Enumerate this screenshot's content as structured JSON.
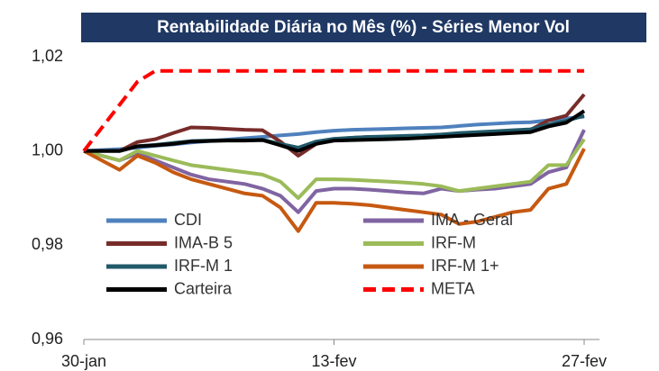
{
  "chart_data": {
    "type": "line",
    "title": "Rentabilidade Diária no Mês (%) - Séries Menor Vol",
    "categories": [
      "30-jan",
      null,
      null,
      null,
      null,
      null,
      null,
      null,
      null,
      null,
      null,
      null,
      null,
      null,
      "13-fev",
      null,
      null,
      null,
      null,
      null,
      null,
      null,
      null,
      null,
      null,
      null,
      null,
      null,
      "27-fev"
    ],
    "ylim": [
      0.96,
      1.02
    ],
    "yticks": [
      {
        "value": 0.96,
        "label": "0,96"
      },
      {
        "value": 0.98,
        "label": "0,98"
      },
      {
        "value": 1.0,
        "label": "1,00"
      },
      {
        "value": 1.02,
        "label": "1,02"
      }
    ],
    "grid": false,
    "legend": "inside",
    "series": [
      {
        "name": "CDI",
        "color": "#4f81bd",
        "values": [
          1.0,
          1.0002,
          1.0004,
          1.0007,
          1.0011,
          1.0014,
          1.0018,
          1.0021,
          1.0024,
          1.0027,
          1.003,
          1.0033,
          1.0036,
          1.004,
          1.0043,
          1.0045,
          1.0046,
          1.0047,
          1.0048,
          1.0049,
          1.005,
          1.0053,
          1.0056,
          1.0058,
          1.006,
          1.0061,
          1.0065,
          1.0069,
          1.0073
        ]
      },
      {
        "name": "IMA - Geral",
        "color": "#8064a2",
        "values": [
          1.0,
          0.999,
          0.998,
          0.9995,
          0.998,
          0.9965,
          0.995,
          0.994,
          0.9935,
          0.993,
          0.992,
          0.9905,
          0.987,
          0.9915,
          0.992,
          0.992,
          0.9918,
          0.9915,
          0.9912,
          0.991,
          0.992,
          0.9915,
          0.9918,
          0.992,
          0.9925,
          0.993,
          0.9955,
          0.9965,
          1.0045
        ]
      },
      {
        "name": "IMA-B 5",
        "color": "#772c2a",
        "values": [
          1.0,
          1.0,
          1.0,
          1.0019,
          1.0025,
          1.0038,
          1.005,
          1.0049,
          1.0047,
          1.0045,
          1.0044,
          1.002,
          0.999,
          1.0015,
          1.0025,
          1.0028,
          1.003,
          1.003,
          1.0031,
          1.0032,
          1.0035,
          1.0032,
          1.0035,
          1.0038,
          1.004,
          1.0045,
          1.0065,
          1.0075,
          1.012
        ]
      },
      {
        "name": "IRF-M",
        "color": "#9bbb59",
        "values": [
          1.0,
          0.999,
          0.998,
          1.0,
          0.999,
          0.998,
          0.997,
          0.9965,
          0.996,
          0.9955,
          0.995,
          0.9935,
          0.99,
          0.994,
          0.994,
          0.9939,
          0.9937,
          0.9935,
          0.9933,
          0.993,
          0.9925,
          0.9915,
          0.992,
          0.9925,
          0.993,
          0.9935,
          0.997,
          0.997,
          1.0025
        ]
      },
      {
        "name": "IRF-M 1",
        "color": "#215968",
        "values": [
          1.0,
          1.0,
          1.0,
          1.001,
          1.0013,
          1.0017,
          1.0021,
          1.0022,
          1.0023,
          1.0023,
          1.0024,
          1.0015,
          1.0007,
          1.002,
          1.0026,
          1.0028,
          1.003,
          1.0031,
          1.0032,
          1.0033,
          1.0035,
          1.0038,
          1.004,
          1.0042,
          1.0044,
          1.0046,
          1.0056,
          1.0064,
          1.0075
        ]
      },
      {
        "name": "IRF-M 1+",
        "color": "#c65911",
        "values": [
          1.0,
          0.998,
          0.996,
          0.999,
          0.9975,
          0.9955,
          0.994,
          0.993,
          0.992,
          0.991,
          0.9905,
          0.988,
          0.983,
          0.989,
          0.989,
          0.9888,
          0.9885,
          0.988,
          0.9875,
          0.987,
          0.9865,
          0.9845,
          0.985,
          0.986,
          0.987,
          0.9875,
          0.992,
          0.993,
          1.0005
        ]
      },
      {
        "name": "Carteira",
        "color": "#000000",
        "values": [
          1.0,
          1.0,
          1.0,
          1.001,
          1.0012,
          1.0015,
          1.002,
          1.0021,
          1.0022,
          1.0022,
          1.0023,
          1.0012,
          1.0,
          1.0015,
          1.0022,
          1.0023,
          1.0024,
          1.0025,
          1.0026,
          1.0028,
          1.003,
          1.0032,
          1.0034,
          1.0036,
          1.0038,
          1.004,
          1.0052,
          1.006,
          1.0085
        ]
      },
      {
        "name": "META",
        "color": "#ff0000",
        "dashed": true,
        "values": [
          1.0,
          1.0049,
          1.0098,
          1.0147,
          1.017,
          1.017,
          1.017,
          1.017,
          1.017,
          1.017,
          1.017,
          1.017,
          1.017,
          1.017,
          1.017,
          1.017,
          1.017,
          1.017,
          1.017,
          1.017,
          1.017,
          1.017,
          1.017,
          1.017,
          1.017,
          1.017,
          1.017,
          1.017,
          1.017
        ]
      }
    ]
  }
}
